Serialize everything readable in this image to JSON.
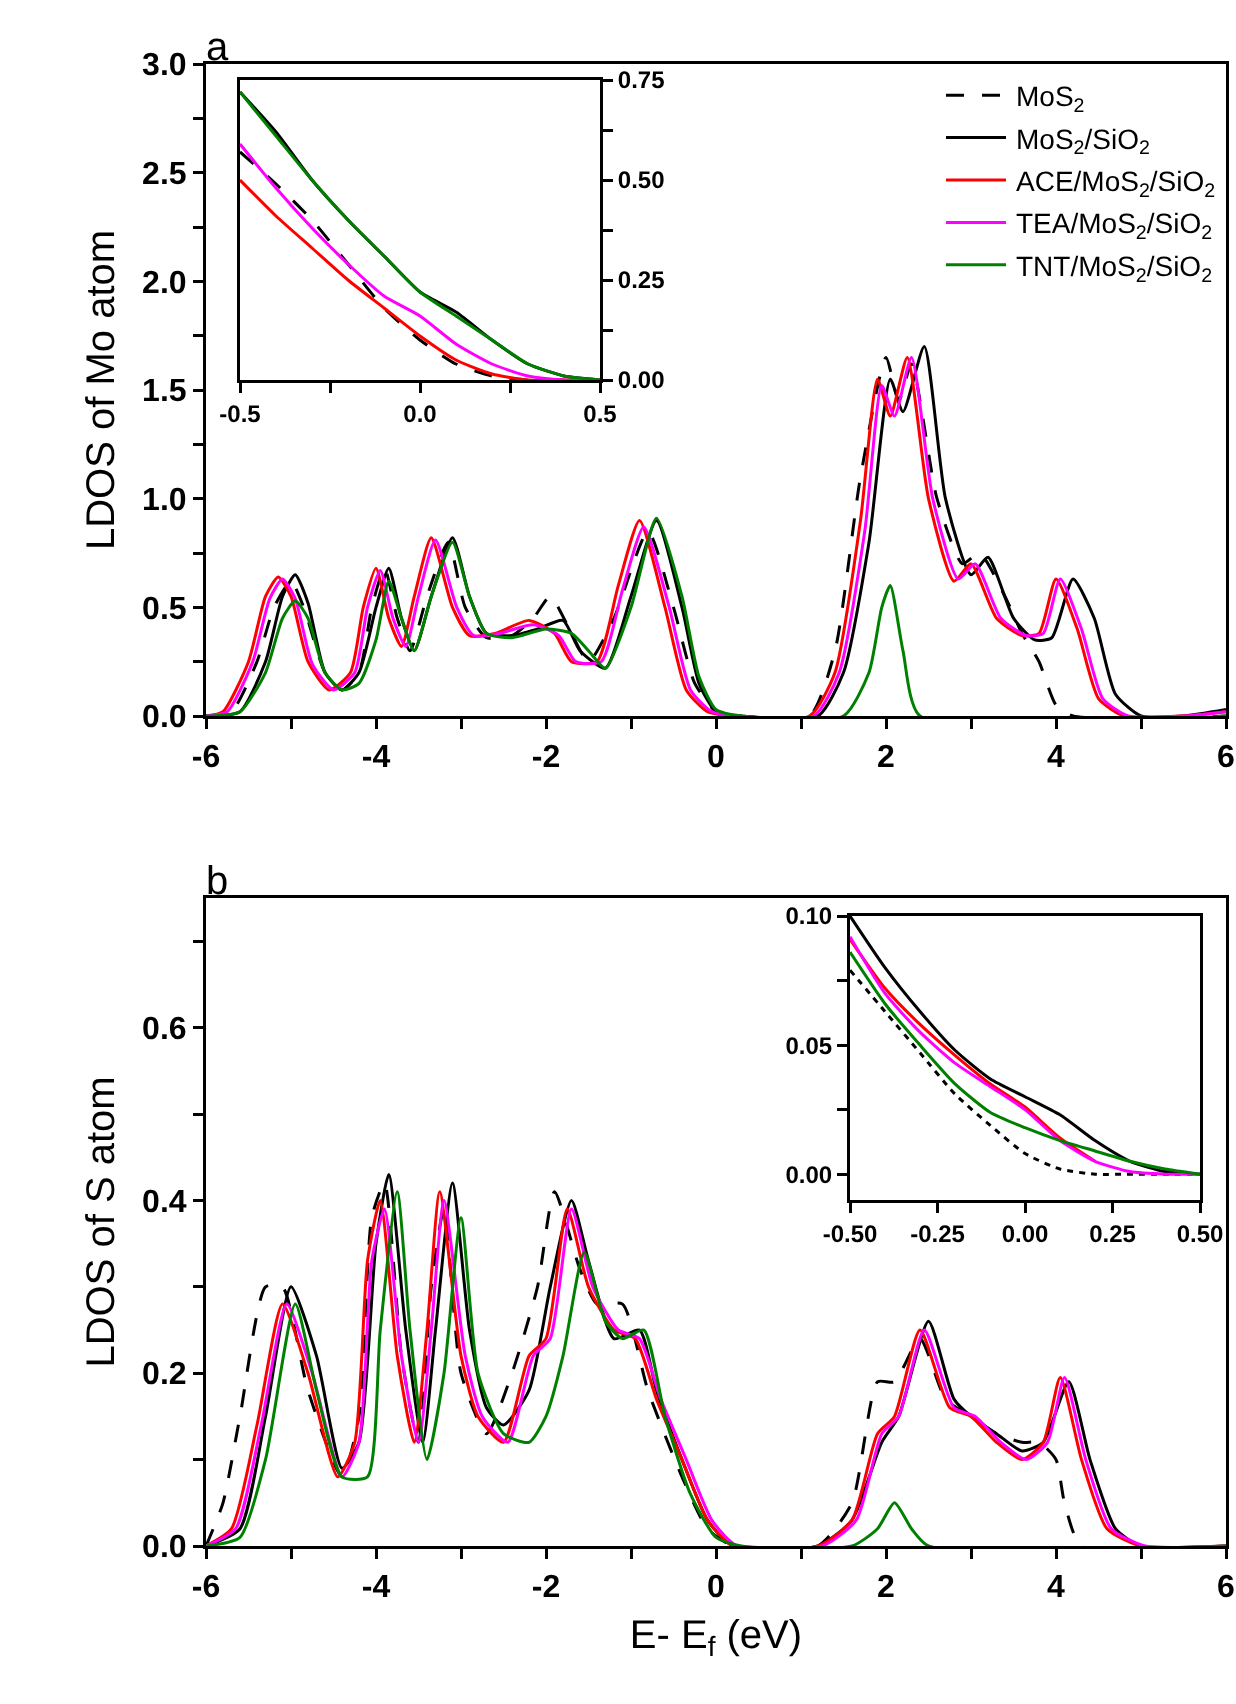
{
  "chart_data": [
    {
      "type": "line",
      "title": "a",
      "ylabel": "LDOS of Mo atom",
      "legend": "top right",
      "xlim": [
        -6,
        6
      ],
      "xticks": [
        -6,
        {
          "value": -5,
          "label": null
        },
        -4,
        {
          "value": -3,
          "label": null
        },
        -2,
        {
          "value": -1,
          "label": null
        },
        0,
        {
          "value": 1,
          "label": null
        },
        2,
        {
          "value": 3,
          "label": null
        },
        4,
        {
          "value": 5,
          "label": null
        },
        6
      ],
      "ylim": [
        0,
        3
      ],
      "yticks": [
        {
          "value": 0,
          "label": "0.0"
        },
        {
          "value": 0.25,
          "label": null
        },
        {
          "value": 0.5,
          "label": "0.5"
        },
        {
          "value": 0.75,
          "label": null
        },
        {
          "value": 1,
          "label": "1.0"
        },
        {
          "value": 1.25,
          "label": null
        },
        {
          "value": 1.5,
          "label": "1.5"
        },
        {
          "value": 1.75,
          "label": null
        },
        {
          "value": 2,
          "label": "2.0"
        },
        {
          "value": 2.25,
          "label": null
        },
        {
          "value": 2.5,
          "label": "2.5"
        },
        {
          "value": 2.75,
          "label": null
        },
        {
          "value": 3,
          "label": "3.0"
        }
      ],
      "series": [
        {
          "name": "MoS$_{2}$",
          "color": "#000000",
          "line_style": "dashed",
          "x": [
            -6,
            -5.7,
            -5.4,
            -5.2,
            -5.0,
            -4.85,
            -4.6,
            -4.4,
            -4.2,
            -4.05,
            -3.9,
            -3.75,
            -3.6,
            -3.4,
            -3.15,
            -2.95,
            -2.7,
            -2.4,
            -2.15,
            -1.95,
            -1.75,
            -1.5,
            -1.2,
            -0.8,
            -0.5,
            -0.25,
            0.0,
            0.3,
            1.1,
            1.4,
            1.7,
            2.0,
            2.15,
            2.3,
            2.6,
            2.9,
            3.1,
            3.4,
            3.6,
            3.8,
            4.0,
            4.2,
            6
          ],
          "values": [
            0,
            0.02,
            0.25,
            0.5,
            0.62,
            0.5,
            0.2,
            0.12,
            0.2,
            0.5,
            0.68,
            0.45,
            0.3,
            0.55,
            0.8,
            0.5,
            0.36,
            0.37,
            0.45,
            0.55,
            0.42,
            0.25,
            0.45,
            0.85,
            0.5,
            0.15,
            0.02,
            0,
            0,
            0.3,
            1.1,
            1.65,
            1.45,
            1.62,
            1.0,
            0.7,
            0.75,
            0.55,
            0.38,
            0.25,
            0.05,
            0,
            0
          ]
        },
        {
          "name": "MoS$_{2}$/SiO$_{2}$",
          "color": "#000000",
          "x": [
            -6,
            -5.6,
            -5.3,
            -5.1,
            -4.95,
            -4.8,
            -4.6,
            -4.4,
            -4.2,
            -4.0,
            -3.85,
            -3.7,
            -3.55,
            -3.35,
            -3.1,
            -2.9,
            -2.7,
            -2.4,
            -2.1,
            -1.8,
            -1.6,
            -1.3,
            -1.0,
            -0.7,
            -0.4,
            -0.2,
            0.0,
            0.3,
            1.2,
            1.5,
            1.8,
            2.05,
            2.2,
            2.45,
            2.7,
            3.0,
            3.2,
            3.5,
            3.75,
            3.95,
            4.2,
            4.45,
            4.7,
            5.0,
            5.5,
            6
          ],
          "values": [
            0,
            0.02,
            0.25,
            0.55,
            0.65,
            0.52,
            0.2,
            0.12,
            0.2,
            0.5,
            0.68,
            0.45,
            0.3,
            0.55,
            0.82,
            0.55,
            0.38,
            0.37,
            0.4,
            0.44,
            0.3,
            0.22,
            0.55,
            0.9,
            0.5,
            0.15,
            0.02,
            0,
            0,
            0.2,
            0.8,
            1.55,
            1.4,
            1.7,
            1.0,
            0.65,
            0.73,
            0.45,
            0.35,
            0.36,
            0.63,
            0.45,
            0.1,
            0,
            0,
            0.03
          ]
        },
        {
          "name": "ACE/MoS$_{2}$/SiO$_{2}$",
          "color": "#ff0000",
          "x": [
            -6,
            -5.8,
            -5.5,
            -5.3,
            -5.15,
            -5.0,
            -4.8,
            -4.55,
            -4.3,
            -4.15,
            -4.0,
            -3.85,
            -3.7,
            -3.55,
            -3.35,
            -3.1,
            -2.9,
            -2.6,
            -2.2,
            -1.9,
            -1.7,
            -1.4,
            -1.15,
            -0.9,
            -0.6,
            -0.35,
            -0.1,
            0.2,
            1.1,
            1.4,
            1.7,
            1.9,
            2.05,
            2.25,
            2.5,
            2.8,
            3.0,
            3.3,
            3.6,
            3.8,
            4.0,
            4.25,
            4.5,
            4.8,
            5.5,
            6
          ],
          "values": [
            0,
            0.02,
            0.25,
            0.55,
            0.64,
            0.55,
            0.25,
            0.12,
            0.2,
            0.5,
            0.68,
            0.45,
            0.32,
            0.55,
            0.82,
            0.5,
            0.37,
            0.38,
            0.44,
            0.38,
            0.25,
            0.25,
            0.6,
            0.9,
            0.5,
            0.12,
            0.02,
            0,
            0,
            0.2,
            0.9,
            1.55,
            1.38,
            1.65,
            1.0,
            0.62,
            0.7,
            0.45,
            0.37,
            0.38,
            0.63,
            0.4,
            0.08,
            0,
            0,
            0.02
          ]
        },
        {
          "name": "TEA/MoS$_{2}$/SiO$_{2}$",
          "color": "#ff00ff",
          "x": [
            -6,
            -5.75,
            -5.45,
            -5.25,
            -5.1,
            -4.95,
            -4.75,
            -4.5,
            -4.25,
            -4.1,
            -3.95,
            -3.8,
            -3.65,
            -3.5,
            -3.3,
            -3.05,
            -2.85,
            -2.55,
            -2.15,
            -1.85,
            -1.65,
            -1.35,
            -1.1,
            -0.85,
            -0.55,
            -0.3,
            -0.05,
            0.25,
            1.15,
            1.45,
            1.75,
            1.95,
            2.1,
            2.3,
            2.55,
            2.85,
            3.05,
            3.35,
            3.65,
            3.85,
            4.05,
            4.3,
            4.55,
            4.85,
            5.5,
            6
          ],
          "values": [
            0,
            0.02,
            0.25,
            0.54,
            0.63,
            0.54,
            0.24,
            0.12,
            0.2,
            0.5,
            0.67,
            0.45,
            0.32,
            0.55,
            0.81,
            0.5,
            0.37,
            0.38,
            0.42,
            0.37,
            0.25,
            0.25,
            0.58,
            0.87,
            0.5,
            0.12,
            0.02,
            0,
            0,
            0.2,
            0.85,
            1.52,
            1.38,
            1.65,
            1.0,
            0.63,
            0.7,
            0.45,
            0.37,
            0.38,
            0.63,
            0.4,
            0.08,
            0,
            0,
            0.02
          ]
        },
        {
          "name": "TNT/MoS$_{2}$/SiO$_{2}$",
          "color": "#008000",
          "x": [
            -6,
            -5.6,
            -5.3,
            -5.1,
            -4.95,
            -4.8,
            -4.6,
            -4.4,
            -4.2,
            -4.0,
            -3.85,
            -3.7,
            -3.55,
            -3.35,
            -3.1,
            -2.9,
            -2.7,
            -2.4,
            -2.0,
            -1.7,
            -1.5,
            -1.3,
            -1.0,
            -0.7,
            -0.4,
            -0.2,
            0.0,
            0.3,
            1.5,
            1.8,
            1.95,
            2.05,
            2.2,
            2.4,
            6
          ],
          "values": [
            0,
            0.02,
            0.2,
            0.45,
            0.53,
            0.45,
            0.2,
            0.12,
            0.15,
            0.35,
            0.62,
            0.45,
            0.3,
            0.55,
            0.8,
            0.55,
            0.38,
            0.36,
            0.4,
            0.38,
            0.3,
            0.22,
            0.5,
            0.91,
            0.55,
            0.18,
            0.03,
            0,
            0,
            0.2,
            0.5,
            0.6,
            0.3,
            0,
            0
          ]
        }
      ]
    },
    {
      "type": "line",
      "xlim": [
        -0.5,
        0.5
      ],
      "xticks": [
        -0.5,
        {
          "value": -0.25,
          "label": null
        },
        {
          "value": 0,
          "label": "0.0"
        },
        {
          "value": 0.25,
          "label": null
        },
        0.5
      ],
      "y2lim": [
        0,
        0.75
      ],
      "y2ticks": [
        {
          "value": 0,
          "label": "0.00"
        },
        {
          "value": 0.125,
          "label": null
        },
        0.25,
        {
          "value": 0.375,
          "label": null
        },
        {
          "value": 0.5,
          "label": "0.50"
        },
        {
          "value": 0.625,
          "label": null
        },
        0.75
      ],
      "series": [
        {
          "color": "#000000",
          "axis": "y2",
          "line_style": "dashed",
          "x": [
            -0.5,
            -0.4,
            -0.3,
            -0.2,
            -0.1,
            0,
            0.1,
            0.2,
            0.3,
            0.4,
            0.5
          ],
          "values": [
            0.57,
            0.49,
            0.4,
            0.29,
            0.18,
            0.1,
            0.04,
            0.01,
            0,
            0,
            0
          ]
        },
        {
          "color": "#000000",
          "axis": "y2",
          "x": [
            -0.5,
            -0.4,
            -0.3,
            -0.2,
            -0.1,
            0,
            0.1,
            0.2,
            0.3,
            0.4,
            0.5
          ],
          "values": [
            0.72,
            0.62,
            0.5,
            0.4,
            0.31,
            0.22,
            0.17,
            0.1,
            0.04,
            0.01,
            0
          ]
        },
        {
          "color": "#ff0000",
          "axis": "y2",
          "x": [
            -0.5,
            -0.4,
            -0.3,
            -0.2,
            -0.1,
            0,
            0.1,
            0.2,
            0.3,
            0.4,
            0.5
          ],
          "values": [
            0.5,
            0.41,
            0.33,
            0.25,
            0.18,
            0.11,
            0.05,
            0.015,
            0,
            0,
            0
          ]
        },
        {
          "color": "#ff00ff",
          "axis": "y2",
          "x": [
            -0.5,
            -0.4,
            -0.3,
            -0.2,
            -0.1,
            0,
            0.1,
            0.2,
            0.3,
            0.4,
            0.5
          ],
          "values": [
            0.59,
            0.48,
            0.38,
            0.29,
            0.21,
            0.16,
            0.09,
            0.04,
            0.01,
            0,
            0
          ]
        },
        {
          "color": "#008000",
          "axis": "y2",
          "x": [
            -0.5,
            -0.4,
            -0.3,
            -0.2,
            -0.1,
            0,
            0.1,
            0.2,
            0.3,
            0.4,
            0.5
          ],
          "values": [
            0.72,
            0.61,
            0.5,
            0.4,
            0.31,
            0.22,
            0.16,
            0.1,
            0.04,
            0.01,
            0
          ]
        }
      ]
    },
    {
      "type": "line",
      "title": "b",
      "xlabel": "E- E$_{f}$ (eV)",
      "ylabel": "LDOS of S atom",
      "xlim": [
        -6,
        6
      ],
      "xticks": [
        -6,
        {
          "value": -5,
          "label": null
        },
        -4,
        {
          "value": -3,
          "label": null
        },
        -2,
        {
          "value": -1,
          "label": null
        },
        0,
        {
          "value": 1,
          "label": null
        },
        2,
        {
          "value": 3,
          "label": null
        },
        4,
        {
          "value": 5,
          "label": null
        },
        6
      ],
      "ylim": [
        0,
        0.75
      ],
      "yticks": [
        {
          "value": 0,
          "label": "0.0"
        },
        {
          "value": 0.1,
          "label": null
        },
        0.2,
        {
          "value": 0.3,
          "label": null
        },
        0.4,
        {
          "value": 0.5,
          "label": null
        },
        0.6,
        {
          "value": 0.7,
          "label": null
        }
      ],
      "series": [
        {
          "color": "#000000",
          "line_style": "dashed",
          "x": [
            -6,
            -5.8,
            -5.6,
            -5.3,
            -5.1,
            -4.8,
            -4.4,
            -4.2,
            -4.05,
            -3.9,
            -3.7,
            -3.5,
            -3.35,
            -3.2,
            -3.0,
            -2.7,
            -2.4,
            -2.1,
            -1.9,
            -1.6,
            -1.4,
            -1.1,
            -0.8,
            -0.4,
            -0.1,
            0.2,
            1.2,
            1.6,
            1.9,
            2.1,
            2.4,
            2.7,
            3.0,
            3.3,
            3.6,
            3.8,
            4.0,
            4.1,
            4.3,
            6
          ],
          "values": [
            0,
            0.05,
            0.15,
            0.3,
            0.3,
            0.18,
            0.08,
            0.15,
            0.38,
            0.42,
            0.22,
            0.12,
            0.3,
            0.39,
            0.2,
            0.13,
            0.2,
            0.3,
            0.41,
            0.32,
            0.28,
            0.28,
            0.18,
            0.08,
            0.02,
            0,
            0,
            0.05,
            0.19,
            0.19,
            0.24,
            0.17,
            0.15,
            0.13,
            0.12,
            0.12,
            0.1,
            0.05,
            0,
            0
          ]
        },
        {
          "color": "#000000",
          "x": [
            -6,
            -5.6,
            -5.3,
            -5.0,
            -4.7,
            -4.4,
            -4.2,
            -4.0,
            -3.85,
            -3.65,
            -3.45,
            -3.3,
            -3.1,
            -2.9,
            -2.7,
            -2.5,
            -2.2,
            -1.95,
            -1.7,
            -1.5,
            -1.2,
            -0.9,
            -0.7,
            -0.4,
            -0.1,
            0.2,
            1.2,
            1.6,
            1.95,
            2.15,
            2.5,
            2.8,
            3.0,
            3.3,
            3.6,
            3.85,
            4.15,
            4.4,
            4.7,
            5.0,
            6
          ],
          "values": [
            0,
            0.02,
            0.15,
            0.3,
            0.22,
            0.09,
            0.12,
            0.35,
            0.43,
            0.25,
            0.12,
            0.25,
            0.42,
            0.25,
            0.16,
            0.14,
            0.18,
            0.3,
            0.4,
            0.33,
            0.24,
            0.25,
            0.18,
            0.1,
            0.03,
            0,
            0,
            0.03,
            0.12,
            0.15,
            0.26,
            0.17,
            0.15,
            0.13,
            0.11,
            0.12,
            0.19,
            0.1,
            0.02,
            0,
            0
          ]
        },
        {
          "color": "#ff0000",
          "x": [
            -6,
            -5.7,
            -5.4,
            -5.1,
            -4.8,
            -4.45,
            -4.25,
            -4.1,
            -3.95,
            -3.75,
            -3.55,
            -3.4,
            -3.25,
            -3.0,
            -2.8,
            -2.5,
            -2.2,
            -2.0,
            -1.75,
            -1.5,
            -1.2,
            -0.95,
            -0.7,
            -0.4,
            -0.1,
            0.2,
            1.2,
            1.6,
            1.9,
            2.1,
            2.4,
            2.75,
            3.0,
            3.3,
            3.6,
            3.85,
            4.05,
            4.3,
            4.6,
            5.0,
            6
          ],
          "values": [
            0,
            0.02,
            0.14,
            0.28,
            0.2,
            0.08,
            0.12,
            0.33,
            0.4,
            0.22,
            0.12,
            0.25,
            0.41,
            0.22,
            0.15,
            0.12,
            0.22,
            0.24,
            0.39,
            0.3,
            0.25,
            0.24,
            0.17,
            0.1,
            0.03,
            0,
            0,
            0.03,
            0.13,
            0.15,
            0.25,
            0.16,
            0.15,
            0.12,
            0.1,
            0.12,
            0.195,
            0.1,
            0.02,
            0,
            0
          ]
        },
        {
          "color": "#ff00ff",
          "x": [
            -6,
            -5.65,
            -5.35,
            -5.05,
            -4.75,
            -4.4,
            -4.2,
            -4.05,
            -3.9,
            -3.7,
            -3.5,
            -3.35,
            -3.2,
            -2.95,
            -2.75,
            -2.45,
            -2.15,
            -1.95,
            -1.7,
            -1.45,
            -1.15,
            -0.9,
            -0.65,
            -0.35,
            -0.05,
            0.25,
            1.25,
            1.65,
            1.95,
            2.15,
            2.45,
            2.8,
            3.05,
            3.35,
            3.65,
            3.9,
            4.1,
            4.35,
            4.65,
            5.05,
            6
          ],
          "values": [
            0,
            0.02,
            0.14,
            0.28,
            0.2,
            0.08,
            0.12,
            0.33,
            0.39,
            0.22,
            0.12,
            0.25,
            0.4,
            0.22,
            0.15,
            0.12,
            0.22,
            0.24,
            0.39,
            0.3,
            0.25,
            0.24,
            0.17,
            0.1,
            0.03,
            0,
            0,
            0.03,
            0.13,
            0.15,
            0.25,
            0.16,
            0.15,
            0.12,
            0.1,
            0.12,
            0.195,
            0.1,
            0.02,
            0,
            0
          ]
        },
        {
          "color": "#008000",
          "x": [
            -6,
            -5.6,
            -5.3,
            -4.95,
            -4.7,
            -4.4,
            -4.1,
            -3.95,
            -3.75,
            -3.6,
            -3.4,
            -3.2,
            -3.0,
            -2.8,
            -2.5,
            -2.2,
            -2.0,
            -1.8,
            -1.55,
            -1.3,
            -1.1,
            -0.85,
            -0.6,
            -0.3,
            0.0,
            0.3,
            1.6,
            1.9,
            2.1,
            2.3,
            2.5,
            6
          ],
          "values": [
            0,
            0.01,
            0.1,
            0.28,
            0.18,
            0.08,
            0.08,
            0.25,
            0.41,
            0.25,
            0.1,
            0.2,
            0.38,
            0.2,
            0.13,
            0.12,
            0.15,
            0.22,
            0.34,
            0.26,
            0.24,
            0.25,
            0.15,
            0.06,
            0.01,
            0,
            0,
            0.02,
            0.05,
            0.02,
            0,
            0
          ]
        }
      ]
    },
    {
      "type": "line",
      "xlim": [
        -0.5,
        0.5
      ],
      "xticks": [
        {
          "value": -0.5,
          "label": "-0.50"
        },
        -0.25,
        {
          "value": 0,
          "label": "0.00"
        },
        0.25,
        {
          "value": 0.5,
          "label": "0.50"
        }
      ],
      "ylim": [
        -0.01,
        0.1
      ],
      "yticks": [
        {
          "value": 0,
          "label": "0.00"
        },
        {
          "value": 0.025,
          "label": null
        },
        0.05,
        {
          "value": 0.075,
          "label": null
        },
        {
          "value": 0.1,
          "label": "0.10"
        }
      ],
      "series": [
        {
          "color": "#000000",
          "line_style": "dotted",
          "x": [
            -0.5,
            -0.4,
            -0.3,
            -0.2,
            -0.1,
            0,
            0.1,
            0.2,
            0.3,
            0.4,
            0.5
          ],
          "values": [
            0.079,
            0.063,
            0.047,
            0.031,
            0.019,
            0.008,
            0.002,
            0,
            0,
            0,
            0
          ]
        },
        {
          "color": "#000000",
          "x": [
            -0.5,
            -0.4,
            -0.3,
            -0.2,
            -0.1,
            0,
            0.1,
            0.2,
            0.3,
            0.4,
            0.5
          ],
          "values": [
            0.1,
            0.08,
            0.063,
            0.048,
            0.037,
            0.03,
            0.023,
            0.013,
            0.005,
            0.001,
            0
          ]
        },
        {
          "color": "#ff0000",
          "x": [
            -0.5,
            -0.4,
            -0.3,
            -0.2,
            -0.1,
            0,
            0.1,
            0.2
          ],
          "values": [
            0.091,
            0.072,
            0.058,
            0.046,
            0.035,
            0.026,
            0.014,
            0.005
          ]
        },
        {
          "color": "#ff00ff",
          "x": [
            -0.5,
            -0.4,
            -0.3,
            -0.2,
            -0.1,
            0,
            0.1,
            0.2,
            0.3,
            0.4,
            0.5
          ],
          "values": [
            0.092,
            0.07,
            0.055,
            0.043,
            0.034,
            0.025,
            0.013,
            0.005,
            0.001,
            0,
            0
          ]
        },
        {
          "color": "#008000",
          "x": [
            -0.5,
            -0.4,
            -0.3,
            -0.2,
            -0.1,
            0,
            0.1,
            0.2,
            0.3,
            0.4,
            0.5
          ],
          "values": [
            0.086,
            0.066,
            0.05,
            0.035,
            0.024,
            0.018,
            0.013,
            0.009,
            0.005,
            0.002,
            0
          ]
        }
      ]
    }
  ]
}
